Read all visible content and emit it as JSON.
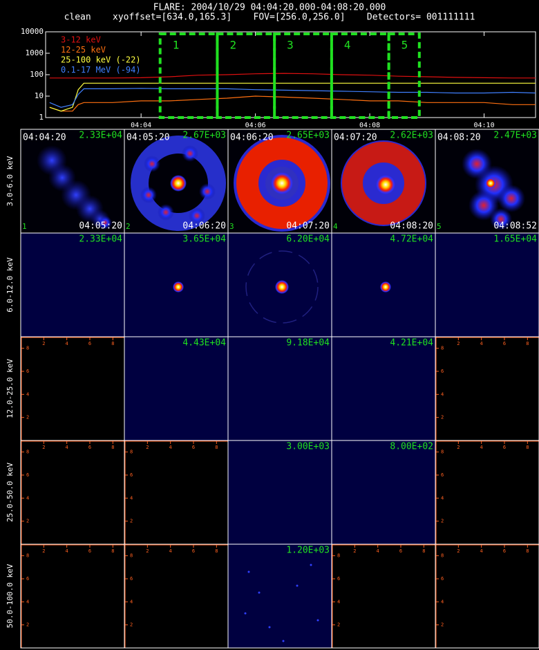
{
  "chart_data": {
    "type": "line",
    "title": "FLARE: 2004/10/29 04:04:20.000-04:08:20.000",
    "subtitle": "clean    xyoffset=[634.0,165.3]    FOV=[256.0,256.0]    Detectors= 001111111",
    "log_y": true,
    "x": [
      2.4,
      2.6,
      2.8,
      2.9,
      3.0,
      3.5,
      4.0,
      4.5,
      5.0,
      5.5,
      6.0,
      6.5,
      7.0,
      7.5,
      8.0,
      8.5,
      9.0,
      9.5,
      10.0,
      10.5,
      10.9
    ],
    "xlim": [
      2.33,
      10.9
    ],
    "xticks": [
      {
        "value": 4,
        "label": "04:04"
      },
      {
        "value": 6,
        "label": "04:06"
      },
      {
        "value": 8,
        "label": "04:08"
      },
      {
        "value": 10,
        "label": "04:10"
      }
    ],
    "ylim": [
      1,
      10000
    ],
    "yticks": [
      1,
      10,
      100,
      1000,
      10000
    ],
    "series": [
      {
        "name": "3-12 keV",
        "color": "#e01010",
        "values": [
          70,
          70,
          70,
          70,
          70,
          70,
          72,
          80,
          95,
          100,
          110,
          115,
          110,
          100,
          95,
          85,
          80,
          75,
          72,
          70,
          70
        ]
      },
      {
        "name": "12-25 keV",
        "color": "#ff7010",
        "values": [
          3,
          2,
          2,
          4,
          5,
          5,
          6,
          6,
          7,
          8,
          10,
          9,
          8,
          7,
          6,
          6,
          5,
          5,
          5,
          4,
          4
        ]
      },
      {
        "name": "25-100 keV (-22)",
        "color": "#ffff40",
        "values": [
          3,
          2,
          3,
          20,
          40,
          40,
          40,
          40,
          40,
          40,
          40,
          40,
          40,
          40,
          40,
          40,
          40,
          40,
          40,
          40,
          40
        ]
      },
      {
        "name": "0.1-17 MeV (-94)",
        "color": "#4080ff",
        "values": [
          5,
          3,
          4,
          12,
          22,
          22,
          23,
          22,
          22,
          22,
          20,
          19,
          18,
          17,
          16,
          15,
          15,
          14,
          14,
          15,
          14
        ]
      }
    ],
    "intervals": [
      {
        "label": "1",
        "start": 4.333,
        "end": 5.333
      },
      {
        "label": "2",
        "start": 5.333,
        "end": 6.333
      },
      {
        "label": "3",
        "start": 6.333,
        "end": 7.333
      },
      {
        "label": "4",
        "start": 7.333,
        "end": 8.333
      },
      {
        "label": "5",
        "start": 8.333,
        "end": 8.867
      }
    ],
    "interval_color": "#20e020"
  },
  "image_grid": {
    "panel_ticks": [
      2,
      4,
      6,
      8
    ],
    "rows": [
      {
        "energy": "3.0-6.0 keV",
        "panels": [
          {
            "start": "04:04:20",
            "end": "04:05:20",
            "index": "1",
            "max": "2.33E+04"
          },
          {
            "start": "04:05:20",
            "end": "04:06:20",
            "index": "2",
            "max": "2.67E+03"
          },
          {
            "start": "04:06:20",
            "end": "04:07:20",
            "index": "3",
            "max": "2.65E+03"
          },
          {
            "start": "04:07:20",
            "end": "04:08:20",
            "index": "4",
            "max": "2.62E+03"
          },
          {
            "start": "04:08:20",
            "end": "04:08:52",
            "index": "5",
            "max": "2.47E+03"
          }
        ]
      },
      {
        "energy": "6.0-12.0 keV",
        "panels": [
          {
            "max": "2.33E+04"
          },
          {
            "max": "3.65E+04"
          },
          {
            "max": "6.20E+04"
          },
          {
            "max": "4.72E+04"
          },
          {
            "max": "1.65E+04"
          }
        ]
      },
      {
        "energy": "12.0-25.0 keV",
        "panels": [
          null,
          {
            "max": "4.43E+04"
          },
          {
            "max": "9.18E+04"
          },
          {
            "max": "4.21E+04"
          },
          null
        ]
      },
      {
        "energy": "25.0-50.0 keV",
        "panels": [
          null,
          null,
          {
            "max": "3.00E+03"
          },
          {
            "max": "8.00E+02"
          },
          null
        ]
      },
      {
        "energy": "50.0-100.0 keV",
        "panels": [
          null,
          null,
          {
            "max": "1.20E+03"
          },
          null,
          null
        ]
      }
    ]
  }
}
